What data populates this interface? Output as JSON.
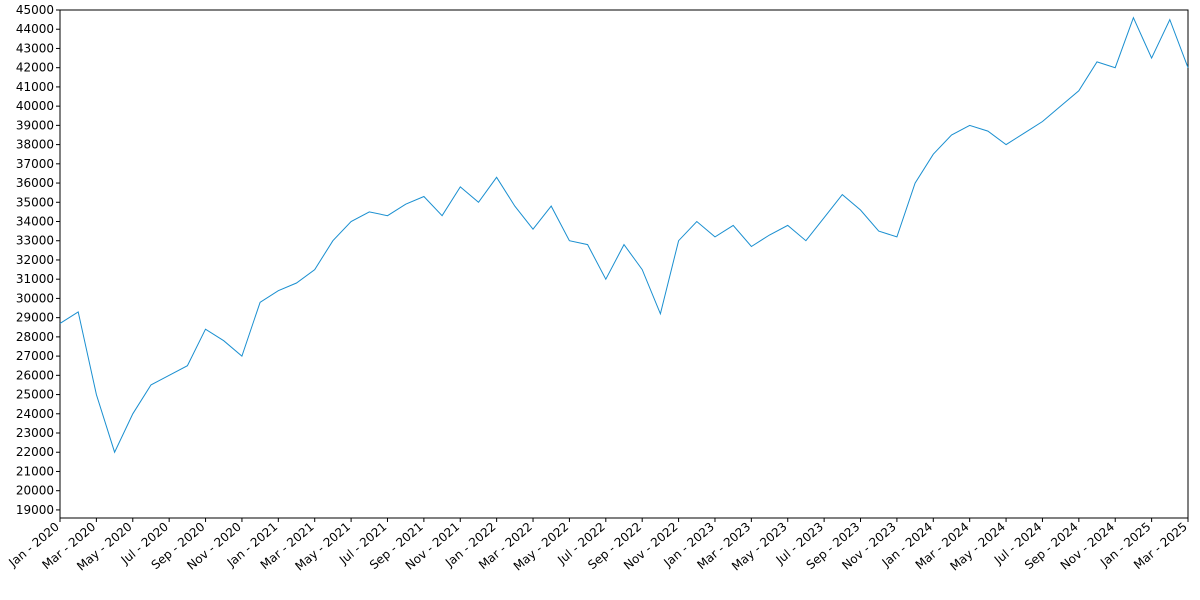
{
  "chart_data": {
    "type": "line",
    "x": [
      "2020-01",
      "2020-02",
      "2020-03",
      "2020-04",
      "2020-05",
      "2020-06",
      "2020-07",
      "2020-08",
      "2020-09",
      "2020-10",
      "2020-11",
      "2020-12",
      "2021-01",
      "2021-02",
      "2021-03",
      "2021-04",
      "2021-05",
      "2021-06",
      "2021-07",
      "2021-08",
      "2021-09",
      "2021-10",
      "2021-11",
      "2021-12",
      "2022-01",
      "2022-02",
      "2022-03",
      "2022-04",
      "2022-05",
      "2022-06",
      "2022-07",
      "2022-08",
      "2022-09",
      "2022-10",
      "2022-11",
      "2022-12",
      "2023-01",
      "2023-02",
      "2023-03",
      "2023-04",
      "2023-05",
      "2023-06",
      "2023-07",
      "2023-08",
      "2023-09",
      "2023-10",
      "2023-11",
      "2023-12",
      "2024-01",
      "2024-02",
      "2024-03",
      "2024-04",
      "2024-05",
      "2024-06",
      "2024-07",
      "2024-08",
      "2024-09",
      "2024-10",
      "2024-11",
      "2024-12",
      "2025-01",
      "2025-02",
      "2025-03"
    ],
    "series": [
      {
        "color": "#1a8fd0",
        "values": [
          28700,
          29300,
          25000,
          22000,
          24000,
          25500,
          26000,
          26500,
          28400,
          27800,
          27000,
          29800,
          30400,
          30800,
          31500,
          33000,
          34000,
          34500,
          34300,
          34900,
          35300,
          34300,
          35800,
          35000,
          36300,
          34800,
          33600,
          34800,
          33000,
          32800,
          31000,
          32800,
          31500,
          29200,
          33000,
          34000,
          33200,
          33800,
          32700,
          33300,
          33800,
          33000,
          34200,
          35400,
          34600,
          33500,
          33200,
          36000,
          37500,
          38500,
          39000,
          38700,
          38000,
          38600,
          39200,
          40000,
          40800,
          42300,
          42000,
          44600,
          42500,
          44500,
          42000
        ]
      }
    ],
    "xlim": [
      "2020-01",
      "2025-03"
    ],
    "xticks": [
      {
        "value": "2020-01",
        "label": "Jan - 2020"
      },
      {
        "value": "2020-03",
        "label": "Mar - 2020"
      },
      {
        "value": "2020-05",
        "label": "May - 2020"
      },
      {
        "value": "2020-07",
        "label": "Jul - 2020"
      },
      {
        "value": "2020-09",
        "label": "Sep - 2020"
      },
      {
        "value": "2020-11",
        "label": "Nov - 2020"
      },
      {
        "value": "2021-01",
        "label": "Jan - 2021"
      },
      {
        "value": "2021-03",
        "label": "Mar - 2021"
      },
      {
        "value": "2021-05",
        "label": "May - 2021"
      },
      {
        "value": "2021-07",
        "label": "Jul - 2021"
      },
      {
        "value": "2021-09",
        "label": "Sep - 2021"
      },
      {
        "value": "2021-11",
        "label": "Nov - 2021"
      },
      {
        "value": "2022-01",
        "label": "Jan - 2022"
      },
      {
        "value": "2022-03",
        "label": "Mar - 2022"
      },
      {
        "value": "2022-05",
        "label": "May - 2022"
      },
      {
        "value": "2022-07",
        "label": "Jul - 2022"
      },
      {
        "value": "2022-09",
        "label": "Sep - 2022"
      },
      {
        "value": "2022-11",
        "label": "Nov - 2022"
      },
      {
        "value": "2023-01",
        "label": "Jan - 2023"
      },
      {
        "value": "2023-03",
        "label": "Mar - 2023"
      },
      {
        "value": "2023-05",
        "label": "May - 2023"
      },
      {
        "value": "2023-07",
        "label": "Jul - 2023"
      },
      {
        "value": "2023-09",
        "label": "Sep - 2023"
      },
      {
        "value": "2023-11",
        "label": "Nov - 2023"
      },
      {
        "value": "2024-01",
        "label": "Jan - 2024"
      },
      {
        "value": "2024-03",
        "label": "Mar - 2024"
      },
      {
        "value": "2024-05",
        "label": "May - 2024"
      },
      {
        "value": "2024-07",
        "label": "Jul - 2024"
      },
      {
        "value": "2024-09",
        "label": "Sep - 2024"
      },
      {
        "value": "2024-11",
        "label": "Nov - 2024"
      },
      {
        "value": "2025-01",
        "label": "Jan - 2025"
      },
      {
        "value": "2025-03",
        "label": "Mar - 2025"
      }
    ],
    "ylim": [
      18580,
      45000
    ],
    "yticks": [
      19000,
      20000,
      21000,
      22000,
      23000,
      24000,
      25000,
      26000,
      27000,
      28000,
      29000,
      30000,
      31000,
      32000,
      33000,
      34000,
      35000,
      36000,
      37000,
      38000,
      39000,
      40000,
      41000,
      42000,
      43000,
      44000,
      45000
    ]
  }
}
